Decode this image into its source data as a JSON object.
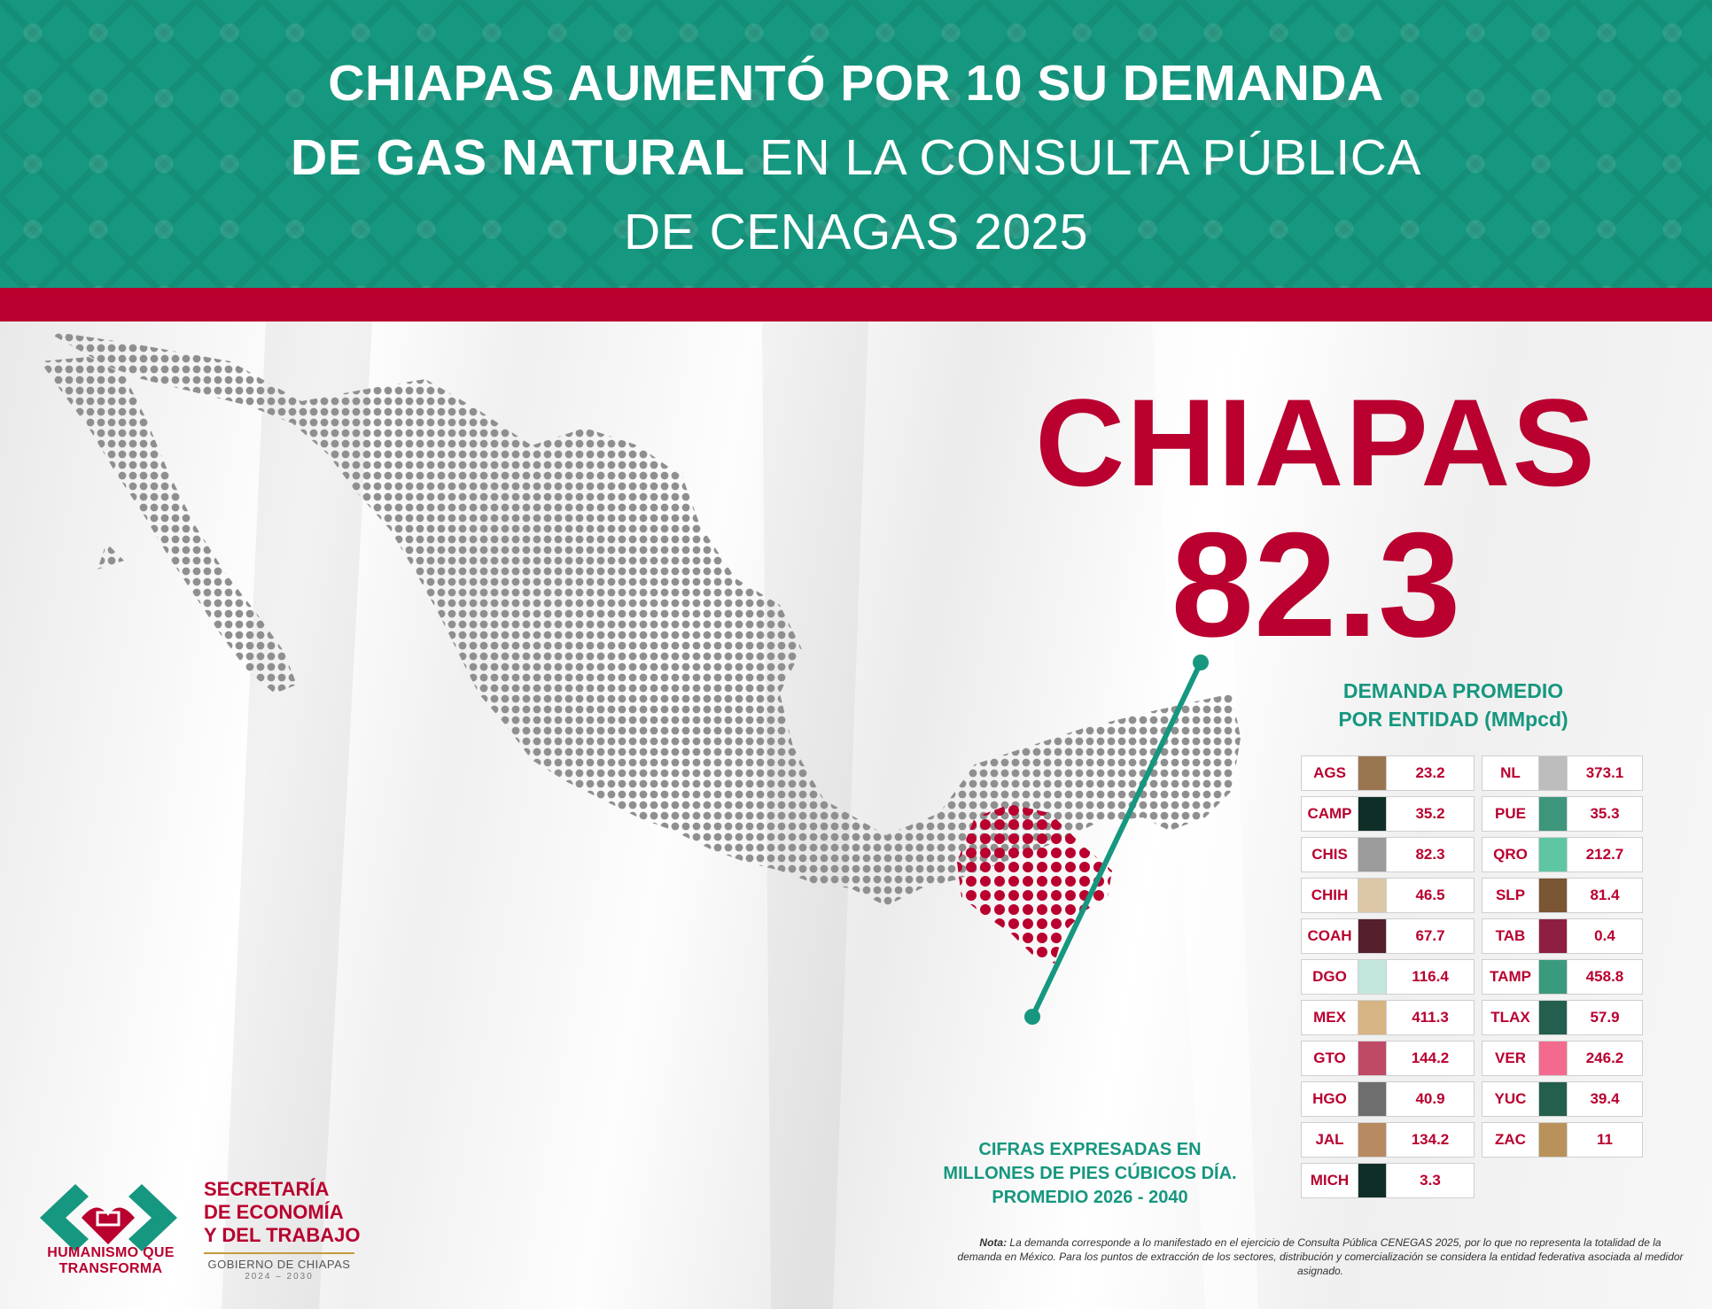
{
  "header": {
    "title_line1": "CHIAPAS AUMENTÓ POR 10 SU DEMANDA",
    "title_line2_bold": "DE GAS NATURAL",
    "title_line2_rest": " EN LA CONSULTA PÚBLICA",
    "title_line3": "DE CENAGAS 2025"
  },
  "highlight": {
    "state": "CHIAPAS",
    "value": "82.3"
  },
  "table": {
    "title_line1": "DEMANDA PROMEDIO",
    "title_line2": "POR ENTIDAD (MMpcd)",
    "left": [
      {
        "code": "AGS",
        "value": "23.2",
        "color": "#9a7650"
      },
      {
        "code": "CAMP",
        "value": "35.2",
        "color": "#0f2e27"
      },
      {
        "code": "CHIS",
        "value": "82.3",
        "color": "#9b9b9b"
      },
      {
        "code": "CHIH",
        "value": "46.5",
        "color": "#dcc7a6"
      },
      {
        "code": "COAH",
        "value": "67.7",
        "color": "#561f2c"
      },
      {
        "code": "DGO",
        "value": "116.4",
        "color": "#c3e7dd"
      },
      {
        "code": "MEX",
        "value": "411.3",
        "color": "#d7b483"
      },
      {
        "code": "GTO",
        "value": "144.2",
        "color": "#bf4a66"
      },
      {
        "code": "HGO",
        "value": "40.9",
        "color": "#6e6e6e"
      },
      {
        "code": "JAL",
        "value": "134.2",
        "color": "#b88a62"
      },
      {
        "code": "MICH",
        "value": "3.3",
        "color": "#0f2e27"
      }
    ],
    "right": [
      {
        "code": "NL",
        "value": "373.1",
        "color": "#bdbdbd"
      },
      {
        "code": "PUE",
        "value": "35.3",
        "color": "#3d967c"
      },
      {
        "code": "QRO",
        "value": "212.7",
        "color": "#5fc6a4"
      },
      {
        "code": "SLP",
        "value": "81.4",
        "color": "#7a5635"
      },
      {
        "code": "TAB",
        "value": "0.4",
        "color": "#8f1f42"
      },
      {
        "code": "TAMP",
        "value": "458.8",
        "color": "#3a9a7d"
      },
      {
        "code": "TLAX",
        "value": "57.9",
        "color": "#235e4e"
      },
      {
        "code": "VER",
        "value": "246.2",
        "color": "#f46a8e"
      },
      {
        "code": "YUC",
        "value": "39.4",
        "color": "#245f4e"
      },
      {
        "code": "ZAC",
        "value": "11",
        "color": "#b9915a"
      }
    ]
  },
  "units": {
    "line1": "CIFRAS EXPRESADAS EN",
    "line2": "MILLONES DE PIES CÚBICOS DÍA.",
    "line3": "PROMEDIO 2026 - 2040"
  },
  "note": {
    "label": "Nota:",
    "text": " La demanda corresponde a lo manifestado en el ejercicio de Consulta Pública CENEGAS 2025, por lo que no representa la totalidad de la demanda en México. Para los puntos de extracción de los sectores, distribución y comercialización se considera la entidad federativa asociada al medidor asignado."
  },
  "logos": {
    "left_line1": "HUMANISMO QUE",
    "left_line2": "TRANSFORMA",
    "right_line1": "SECRETARÍA",
    "right_line2": "DE ECONOMÍA",
    "right_line3": "Y DEL TRABAJO",
    "right_gov": "GOBIERNO DE CHIAPAS",
    "right_years": "2024 – 2030"
  },
  "colors": {
    "teal": "#16977f",
    "red": "#b9002f",
    "map_dots": "#8f8f8f",
    "highlight_dots": "#b9002f"
  }
}
